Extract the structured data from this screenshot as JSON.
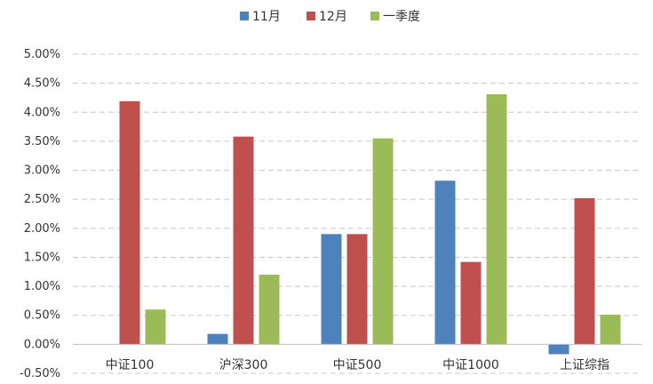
{
  "chart_data": {
    "type": "bar",
    "title": "",
    "xlabel": "",
    "ylabel": "",
    "categories": [
      "中证100",
      "沪深300",
      "中证500",
      "中证1000",
      "上证综指"
    ],
    "series": [
      {
        "name": "11月",
        "color": "#4f81bd",
        "values": [
          0.0,
          0.18,
          1.9,
          2.82,
          -0.17
        ]
      },
      {
        "name": "12月",
        "color": "#c0504d",
        "values": [
          4.19,
          3.58,
          1.9,
          1.42,
          2.52
        ]
      },
      {
        "name": "一季度",
        "color": "#9bbb59",
        "values": [
          0.6,
          1.2,
          3.55,
          4.31,
          0.51
        ]
      }
    ],
    "ylim": [
      -0.5,
      5.0
    ],
    "yticks": [
      "-0.50%",
      "0.00%",
      "0.50%",
      "1.00%",
      "1.50%",
      "2.00%",
      "2.50%",
      "3.00%",
      "3.50%",
      "4.00%",
      "4.50%",
      "5.00%"
    ],
    "ytick_values": [
      -0.5,
      0,
      0.5,
      1.0,
      1.5,
      2.0,
      2.5,
      3.0,
      3.5,
      4.0,
      4.5,
      5.0
    ],
    "grid": true,
    "legend_position": "top-center"
  }
}
